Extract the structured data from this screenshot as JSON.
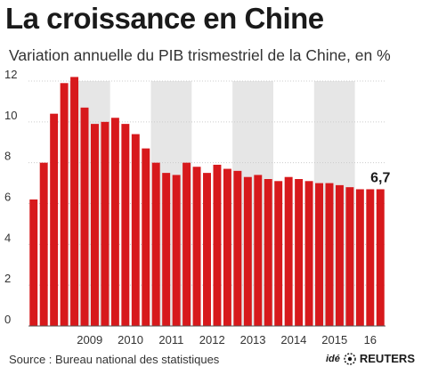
{
  "header": {
    "title": "La croissance en Chine",
    "subtitle": "Variation annuelle du PIB trismestriel de la Chine, en %"
  },
  "footer": {
    "source": "Source : Bureau national des statistiques",
    "logo_prefix": "idé",
    "logo_brand": "REUTERS"
  },
  "colors": {
    "bar": "#d7191c",
    "band": "#e6e6e6",
    "grid": "#cccccc"
  },
  "chart_data": {
    "type": "bar",
    "title": "La croissance en Chine",
    "subtitle": "Variation annuelle du PIB trismestriel de la Chine, en %",
    "ylim": [
      0,
      12
    ],
    "yticks": [
      0,
      2,
      4,
      6,
      8,
      10,
      12
    ],
    "grid": true,
    "x_labels": [
      "2009",
      "2010",
      "2011",
      "2012",
      "2013",
      "2014",
      "2015",
      "16"
    ],
    "shaded_years": [
      "2009",
      "2011",
      "2013",
      "2015"
    ],
    "quarters": [
      "2008-T1",
      "2008-T2",
      "2008-T3",
      "2008-T4",
      "2009-T1",
      "2009-T2",
      "2009-T3",
      "2009-T4",
      "2010-T1",
      "2010-T2",
      "2010-T3",
      "2010-T4",
      "2011-T1",
      "2011-T2",
      "2011-T3",
      "2011-T4",
      "2012-T1",
      "2012-T2",
      "2012-T3",
      "2012-T4",
      "2013-T1",
      "2013-T2",
      "2013-T3",
      "2013-T4",
      "2014-T1",
      "2014-T2",
      "2014-T3",
      "2014-T4",
      "2015-T1",
      "2015-T2",
      "2015-T3",
      "2015-T4",
      "2016-T1",
      "2016-T2",
      "2016-T3"
    ],
    "values": [
      6.2,
      8.0,
      10.4,
      11.9,
      12.2,
      10.7,
      9.9,
      10.0,
      10.2,
      9.9,
      9.4,
      8.7,
      8.0,
      7.5,
      7.4,
      8.0,
      7.8,
      7.5,
      7.9,
      7.7,
      7.6,
      7.3,
      7.4,
      7.2,
      7.1,
      7.3,
      7.2,
      7.1,
      7.0,
      7.0,
      6.9,
      6.8,
      6.7,
      6.7,
      6.7
    ],
    "last_value_label": "6,7"
  }
}
